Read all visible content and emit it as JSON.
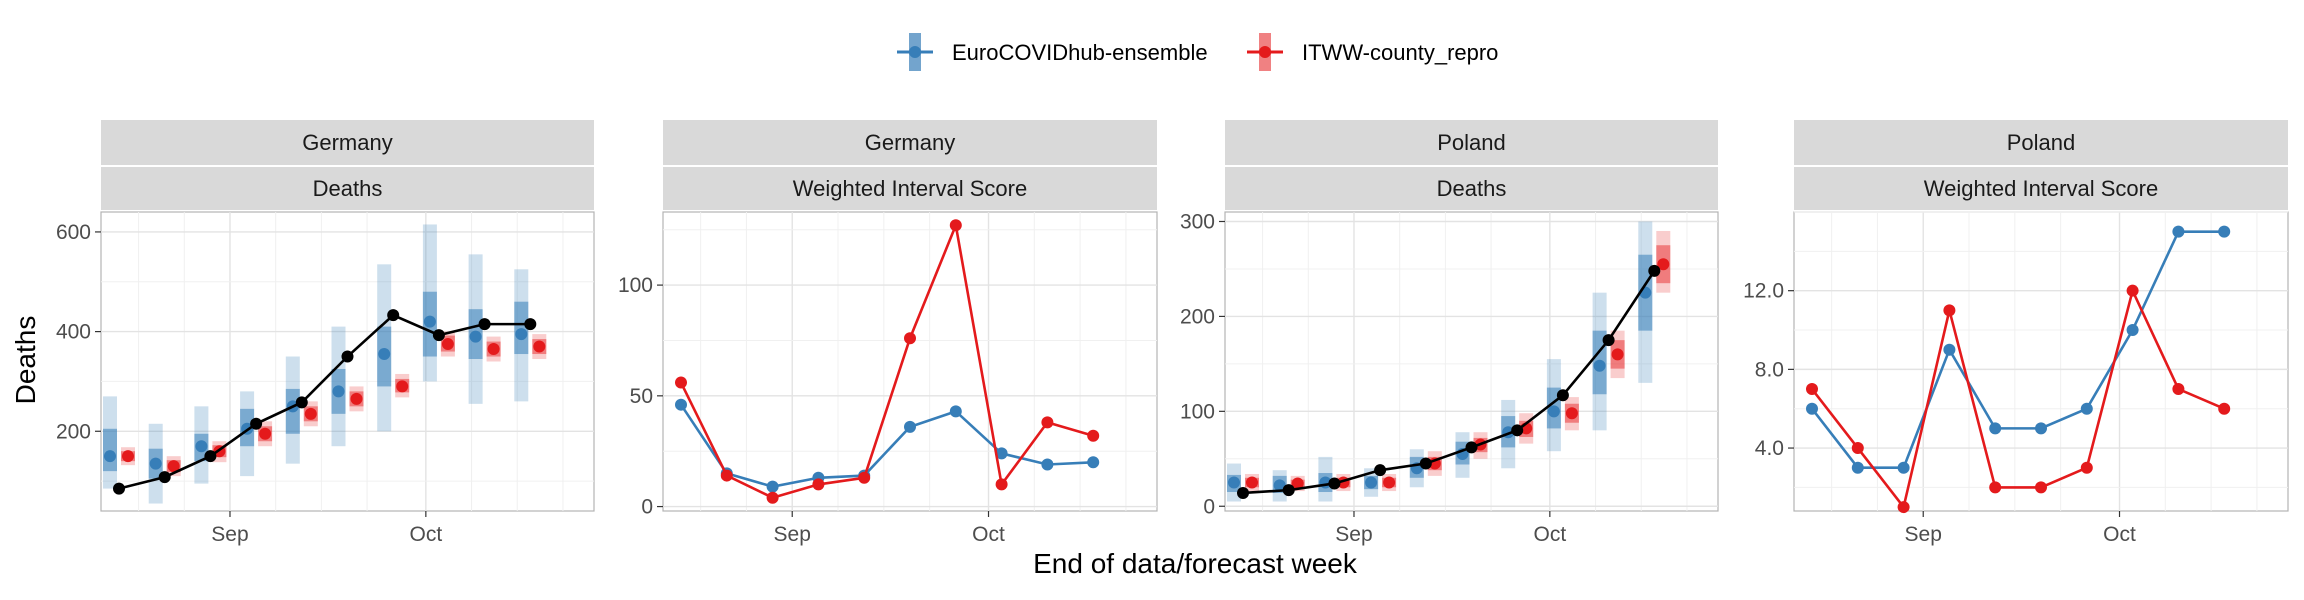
{
  "legend": {
    "items": [
      {
        "label": "EuroCOVIDhub-ensemble",
        "color": "#377EB8"
      },
      {
        "label": "ITWW-county_repro",
        "color": "#E41A1C"
      }
    ]
  },
  "xlabel": "End of data/forecast week",
  "ylabel": "Deaths",
  "chart_data": [
    {
      "type": "line",
      "panel_title": [
        "Germany",
        "Deaths"
      ],
      "x_ticks": [
        "Sep",
        "Oct"
      ],
      "y_ticks": [
        200,
        400,
        600
      ],
      "ylim": [
        40,
        640
      ],
      "x": [
        "Aug 15",
        "Aug 22",
        "Aug 29",
        "Sep 5",
        "Sep 12",
        "Sep 19",
        "Sep 26",
        "Oct 3",
        "Oct 10",
        "Oct 17"
      ],
      "observed": [
        85,
        108,
        150,
        215,
        258,
        350,
        433,
        393,
        415,
        415
      ],
      "series": [
        {
          "name": "EuroCOVIDhub-ensemble",
          "color": "#377EB8",
          "median": [
            150,
            135,
            170,
            205,
            250,
            280,
            355,
            420,
            390,
            395
          ],
          "inner": [
            [
              120,
              205
            ],
            [
              105,
              165
            ],
            [
              140,
              195
            ],
            [
              170,
              245
            ],
            [
              195,
              285
            ],
            [
              235,
              325
            ],
            [
              290,
              410
            ],
            [
              350,
              480
            ],
            [
              345,
              445
            ],
            [
              355,
              460
            ]
          ],
          "outer": [
            [
              85,
              270
            ],
            [
              55,
              215
            ],
            [
              95,
              250
            ],
            [
              110,
              280
            ],
            [
              135,
              350
            ],
            [
              170,
              410
            ],
            [
              200,
              535
            ],
            [
              300,
              615
            ],
            [
              255,
              555
            ],
            [
              260,
              525
            ]
          ]
        },
        {
          "name": "ITWW-county_repro",
          "color": "#E41A1C",
          "median": [
            150,
            130,
            160,
            195,
            235,
            265,
            290,
            375,
            365,
            370
          ],
          "inner": [
            [
              140,
              160
            ],
            [
              118,
              142
            ],
            [
              148,
              172
            ],
            [
              180,
              210
            ],
            [
              220,
              250
            ],
            [
              250,
              280
            ],
            [
              278,
              305
            ],
            [
              360,
              392
            ],
            [
              350,
              380
            ],
            [
              355,
              385
            ]
          ],
          "outer": [
            [
              132,
              168
            ],
            [
              110,
              150
            ],
            [
              138,
              180
            ],
            [
              170,
              220
            ],
            [
              210,
              260
            ],
            [
              240,
              290
            ],
            [
              268,
              315
            ],
            [
              350,
              400
            ],
            [
              340,
              390
            ],
            [
              345,
              395
            ]
          ]
        }
      ]
    },
    {
      "type": "line",
      "panel_title": [
        "Germany",
        "Weighted Interval Score"
      ],
      "x_ticks": [
        "Sep",
        "Oct"
      ],
      "y_ticks": [
        0,
        50,
        100
      ],
      "ylim": [
        -2,
        133
      ],
      "x": [
        "Aug 15",
        "Aug 22",
        "Aug 29",
        "Sep 5",
        "Sep 12",
        "Sep 19",
        "Sep 26",
        "Oct 3",
        "Oct 10",
        "Oct 17"
      ],
      "series": [
        {
          "name": "EuroCOVIDhub-ensemble",
          "color": "#377EB8",
          "values": [
            46,
            15,
            9,
            13,
            14,
            36,
            43,
            24,
            19,
            20
          ]
        },
        {
          "name": "ITWW-county_repro",
          "color": "#E41A1C",
          "values": [
            56,
            14,
            4,
            10,
            13,
            76,
            127,
            10,
            38,
            32
          ]
        }
      ]
    },
    {
      "type": "line",
      "panel_title": [
        "Poland",
        "Deaths"
      ],
      "x_ticks": [
        "Sep",
        "Oct"
      ],
      "y_ticks": [
        0,
        100,
        200,
        300
      ],
      "ylim": [
        -5,
        310
      ],
      "x": [
        "Aug 15",
        "Aug 22",
        "Aug 29",
        "Sep 5",
        "Sep 12",
        "Sep 19",
        "Sep 26",
        "Oct 3",
        "Oct 10",
        "Oct 17"
      ],
      "observed": [
        14,
        17,
        24,
        38,
        45,
        62,
        80,
        117,
        175,
        248
      ],
      "series": [
        {
          "name": "EuroCOVIDhub-ensemble",
          "color": "#377EB8",
          "median": [
            25,
            22,
            25,
            25,
            40,
            55,
            78,
            100,
            148,
            225
          ],
          "inner": [
            [
              15,
              33
            ],
            [
              14,
              32
            ],
            [
              15,
              35
            ],
            [
              18,
              32
            ],
            [
              30,
              52
            ],
            [
              44,
              68
            ],
            [
              62,
              95
            ],
            [
              82,
              125
            ],
            [
              118,
              185
            ],
            [
              185,
              265
            ]
          ],
          "outer": [
            [
              5,
              45
            ],
            [
              5,
              38
            ],
            [
              5,
              52
            ],
            [
              10,
              40
            ],
            [
              20,
              60
            ],
            [
              30,
              78
            ],
            [
              40,
              112
            ],
            [
              58,
              155
            ],
            [
              80,
              225
            ],
            [
              130,
              300
            ]
          ]
        },
        {
          "name": "ITWW-county_repro",
          "color": "#E41A1C",
          "median": [
            25,
            24,
            25,
            25,
            45,
            65,
            82,
            98,
            160,
            255
          ],
          "inner": [
            [
              20,
              30
            ],
            [
              20,
              28
            ],
            [
              20,
              30
            ],
            [
              20,
              30
            ],
            [
              38,
              52
            ],
            [
              57,
              72
            ],
            [
              73,
              90
            ],
            [
              88,
              108
            ],
            [
              145,
              175
            ],
            [
              235,
              275
            ]
          ],
          "outer": [
            [
              16,
              34
            ],
            [
              16,
              32
            ],
            [
              16,
              34
            ],
            [
              16,
              34
            ],
            [
              32,
              58
            ],
            [
              50,
              78
            ],
            [
              66,
              98
            ],
            [
              80,
              115
            ],
            [
              135,
              185
            ],
            [
              225,
              290
            ]
          ]
        }
      ]
    },
    {
      "type": "line",
      "panel_title": [
        "Poland",
        "Weighted Interval Score"
      ],
      "x_ticks": [
        "Sep",
        "Oct"
      ],
      "y_ticks": [
        "4.0",
        "8.0",
        "12.0"
      ],
      "ylim": [
        0.8,
        16
      ],
      "x": [
        "Aug 15",
        "Aug 22",
        "Aug 29",
        "Sep 5",
        "Sep 12",
        "Sep 19",
        "Sep 26",
        "Oct 3",
        "Oct 10",
        "Oct 17"
      ],
      "series": [
        {
          "name": "EuroCOVIDhub-ensemble",
          "color": "#377EB8",
          "values": [
            6,
            3,
            3,
            9,
            5,
            5,
            6,
            10,
            15,
            15
          ]
        },
        {
          "name": "ITWW-county_repro",
          "color": "#E41A1C",
          "values": [
            7,
            4,
            1,
            11,
            2,
            2,
            3,
            12,
            7,
            6
          ]
        }
      ]
    }
  ]
}
